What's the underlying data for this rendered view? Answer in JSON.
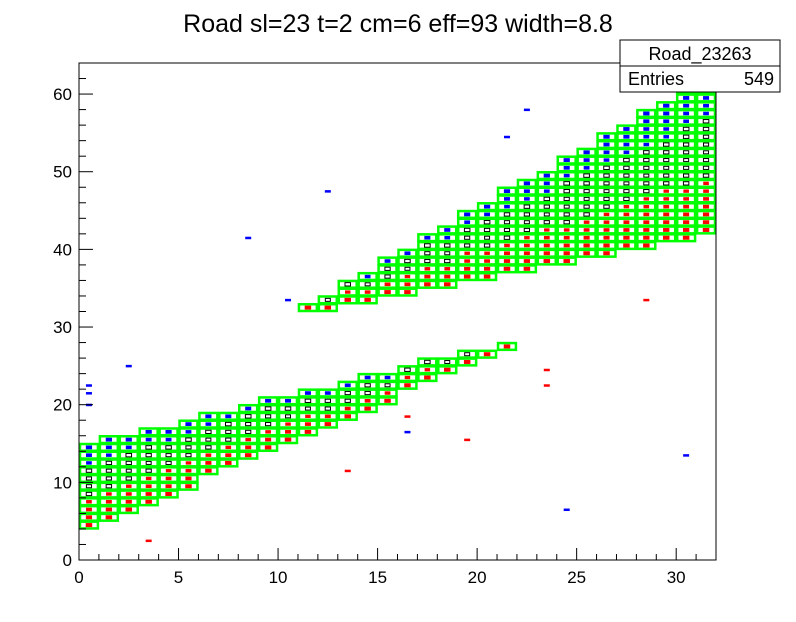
{
  "colors": {
    "background": "#ffffff",
    "frame": "#000000",
    "road": "#00ff00",
    "hit_upper": "#0000ff",
    "hit_lower": "#ff0000",
    "hit_center": "#000000"
  },
  "chart_data": {
    "type": "heatmap",
    "title": "Road sl=23 t=2 cm=6 eff=93 width=8.8",
    "xlabel": "",
    "ylabel": "",
    "xlim": [
      0,
      32
    ],
    "ylim": [
      0,
      64
    ],
    "x_ticks": [
      "0",
      "5",
      "10",
      "15",
      "20",
      "25",
      "30"
    ],
    "y_ticks": [
      "0",
      "10",
      "20",
      "30",
      "40",
      "50",
      "60"
    ],
    "stats_box": {
      "name": "Road_23263",
      "entries_label": "Entries",
      "entries_value": "549"
    },
    "road_segments": [
      {
        "x_start": 0,
        "x_end": 22,
        "bottom_start": 4,
        "bottom_end": 27,
        "top_start": 15,
        "top_end": 28
      },
      {
        "x_start": 11,
        "x_end": 32,
        "bottom_start": 31.5,
        "bottom_end": 42,
        "top_start": 33,
        "top_end": 62
      }
    ],
    "outliers": [
      {
        "x": 0.5,
        "y": 22.5,
        "color": "blue"
      },
      {
        "x": 0.5,
        "y": 21.5,
        "color": "blue"
      },
      {
        "x": 0.5,
        "y": 20,
        "color": "blue"
      },
      {
        "x": 3.5,
        "y": 2.5,
        "color": "red"
      },
      {
        "x": 2.5,
        "y": 25,
        "color": "blue"
      },
      {
        "x": 8.5,
        "y": 41.5,
        "color": "blue"
      },
      {
        "x": 10.5,
        "y": 33.5,
        "color": "blue"
      },
      {
        "x": 12.5,
        "y": 47.5,
        "color": "blue"
      },
      {
        "x": 13.5,
        "y": 11.5,
        "color": "red"
      },
      {
        "x": 16.5,
        "y": 16.5,
        "color": "blue"
      },
      {
        "x": 16.5,
        "y": 18.5,
        "color": "red"
      },
      {
        "x": 19.5,
        "y": 15.5,
        "color": "red"
      },
      {
        "x": 23.5,
        "y": 24.5,
        "color": "red"
      },
      {
        "x": 23.5,
        "y": 22.5,
        "color": "red"
      },
      {
        "x": 24.5,
        "y": 6.5,
        "color": "blue"
      },
      {
        "x": 28.5,
        "y": 33.5,
        "color": "red"
      },
      {
        "x": 30.5,
        "y": 13.5,
        "color": "blue"
      },
      {
        "x": 22.5,
        "y": 58,
        "color": "blue"
      },
      {
        "x": 21.5,
        "y": 54.5,
        "color": "blue"
      }
    ]
  }
}
